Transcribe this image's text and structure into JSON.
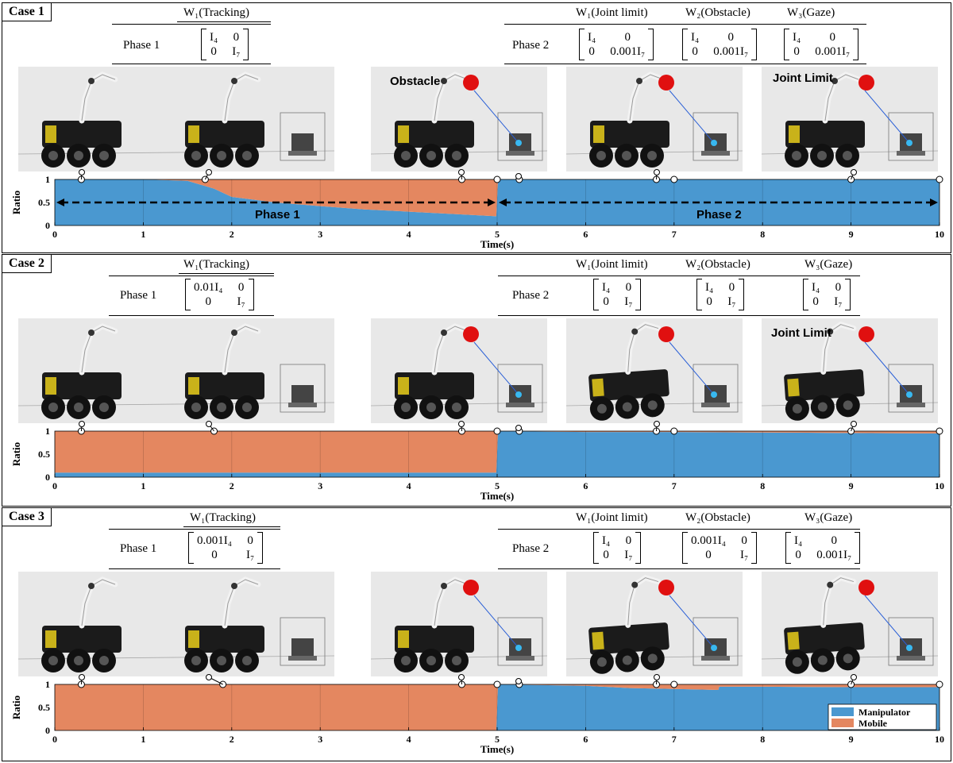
{
  "cases": [
    {
      "label": "Case 1",
      "phase1": {
        "label": "Phase 1",
        "header": "W₁(Tracking)",
        "matrix": [
          "I₄",
          "0",
          "0",
          "I₇"
        ]
      },
      "phase2": {
        "label": "Phase 2",
        "headers": [
          "W₁(Joint limit)",
          "W₂(Obstacle)",
          "W₃(Gaze)"
        ],
        "matrices": [
          [
            "I₄",
            "0",
            "0",
            "0.001I₇"
          ],
          [
            "I₄",
            "0",
            "0",
            "0.001I₇"
          ],
          [
            "I₄",
            "0",
            "0",
            "0.001I₇"
          ]
        ]
      },
      "annotations": [
        "Obstacle",
        "Joint Limit"
      ],
      "phase_markers": [
        "Phase 1",
        "Phase 2"
      ]
    },
    {
      "label": "Case 2",
      "phase1": {
        "label": "Phase 1",
        "header": "W₁(Tracking)",
        "matrix": [
          "0.01I₄",
          "0",
          "0",
          "I₇"
        ]
      },
      "phase2": {
        "label": "Phase 2",
        "headers": [
          "W₁(Joint limit)",
          "W₂(Obstacle)",
          "W₃(Gaze)"
        ],
        "matrices": [
          [
            "I₄",
            "0",
            "0",
            "I₇"
          ],
          [
            "I₄",
            "0",
            "0",
            "I₇"
          ],
          [
            "I₄",
            "0",
            "0",
            "I₇"
          ]
        ]
      },
      "annotations": [
        "Joint Limit"
      ]
    },
    {
      "label": "Case 3",
      "phase1": {
        "label": "Phase 1",
        "header": "W₁(Tracking)",
        "matrix": [
          "0.001I₄",
          "0",
          "0",
          "I₇"
        ]
      },
      "phase2": {
        "label": "Phase 2",
        "headers": [
          "W₁(Joint limit)",
          "W₂(Obstacle)",
          "W₃(Gaze)"
        ],
        "matrices": [
          [
            "I₄",
            "0",
            "0",
            "I₇"
          ],
          [
            "0.001I₄",
            "0",
            "0",
            "I₇"
          ],
          [
            "I₄",
            "0",
            "0",
            "0.001I₇"
          ]
        ]
      },
      "annotations": []
    }
  ],
  "chart_data": [
    {
      "type": "area",
      "title": "",
      "xlabel": "Time(s)",
      "ylabel": "Ratio",
      "xlim": [
        0,
        10
      ],
      "ylim": [
        0,
        1
      ],
      "xticks": [
        "0",
        "1",
        "2",
        "3",
        "4",
        "5",
        "6",
        "7",
        "8",
        "9",
        "10"
      ],
      "yticks": [
        "0",
        "0.5",
        "1"
      ],
      "x": [
        0,
        1,
        1.5,
        1.8,
        2,
        2.5,
        3,
        3.5,
        4,
        4.5,
        4.99,
        5.01,
        6,
        7,
        8,
        9,
        10
      ],
      "series": [
        {
          "name": "Manipulator",
          "color": "#4a98d0",
          "values": [
            1,
            1,
            0.97,
            0.8,
            0.62,
            0.5,
            0.42,
            0.35,
            0.3,
            0.25,
            0.2,
            1,
            1,
            1,
            1,
            1,
            1
          ]
        },
        {
          "name": "Mobile",
          "color": "#e48760",
          "values": [
            0,
            0,
            0.03,
            0.2,
            0.38,
            0.5,
            0.58,
            0.65,
            0.7,
            0.75,
            0.8,
            0,
            0,
            0,
            0,
            0,
            0
          ]
        }
      ],
      "snapshot_times": [
        0.3,
        1.7,
        4.6,
        5.0,
        5.25,
        6.8,
        7.0,
        9.0,
        10.0
      ]
    },
    {
      "type": "area",
      "xlabel": "Time(s)",
      "ylabel": "Ratio",
      "xlim": [
        0,
        10
      ],
      "ylim": [
        0,
        1
      ],
      "xticks": [
        "0",
        "1",
        "2",
        "3",
        "4",
        "5",
        "6",
        "7",
        "8",
        "9",
        "10"
      ],
      "yticks": [
        "0",
        "0.5",
        "1"
      ],
      "x": [
        0,
        4.99,
        5.01,
        6,
        7,
        8,
        9,
        10
      ],
      "series": [
        {
          "name": "Manipulator",
          "color": "#4a98d0",
          "values": [
            0.1,
            0.1,
            1,
            0.98,
            0.98,
            0.97,
            0.96,
            0.95
          ]
        },
        {
          "name": "Mobile",
          "color": "#e48760",
          "values": [
            0.9,
            0.9,
            0,
            0.02,
            0.02,
            0.03,
            0.04,
            0.05
          ]
        }
      ],
      "snapshot_times": [
        0.3,
        1.8,
        4.6,
        5.0,
        5.25,
        6.8,
        7.0,
        9.0,
        10.0
      ]
    },
    {
      "type": "area",
      "xlabel": "Time(s)",
      "ylabel": "Ratio",
      "xlim": [
        0,
        10
      ],
      "ylim": [
        0,
        1
      ],
      "xticks": [
        "0",
        "1",
        "2",
        "3",
        "4",
        "5",
        "6",
        "7",
        "8",
        "9",
        "10"
      ],
      "yticks": [
        "0",
        "0.5",
        "1"
      ],
      "x": [
        0,
        4.99,
        5.01,
        6,
        6.5,
        7,
        7.5,
        7.51,
        8,
        9,
        10
      ],
      "series": [
        {
          "name": "Manipulator",
          "color": "#4a98d0",
          "values": [
            0,
            0,
            1,
            0.97,
            0.92,
            0.9,
            0.88,
            0.95,
            0.95,
            0.94,
            0.94
          ]
        },
        {
          "name": "Mobile",
          "color": "#e48760",
          "values": [
            1,
            1,
            0,
            0.03,
            0.08,
            0.1,
            0.12,
            0.05,
            0.05,
            0.06,
            0.06
          ]
        }
      ],
      "legend": {
        "position": "bottom-right",
        "entries": [
          "Manipulator",
          "Mobile"
        ]
      },
      "snapshot_times": [
        0.3,
        1.9,
        4.6,
        5.0,
        5.25,
        6.8,
        7.0,
        9.0,
        10.0
      ]
    }
  ]
}
